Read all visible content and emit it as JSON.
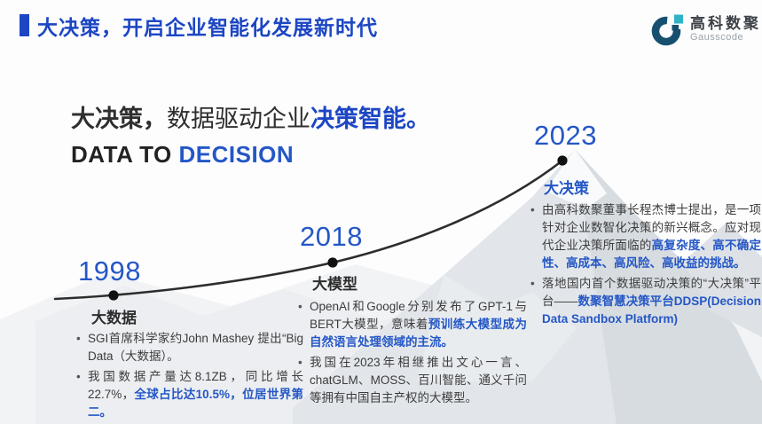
{
  "slide": {
    "header_title": "大决策，开启企业智能化发展新时代"
  },
  "logo": {
    "company_cn": "高科数聚",
    "company_en": "Gausscode"
  },
  "headline": {
    "cn_bold": "大决策，",
    "cn_regular": "数据驱动企业",
    "cn_accent": "决策智能。",
    "en_dark": "DATA TO",
    "en_accent": "DECISION"
  },
  "colors": {
    "accent": "#1c46c3",
    "year_blue": "#2457c6",
    "dark_text": "#2d2d2d",
    "body_text": "#3c3c3c",
    "curve": "#2d2d2d",
    "logo_navy": "#17506f",
    "logo_teal": "#2fb3c6"
  },
  "timeline": {
    "milestones": [
      {
        "year": "1998",
        "label": "大数据",
        "bullets": [
          [
            {
              "t": "SGI首席科学家约John Mashey 提出“Big Data（大数据）。",
              "em": false
            }
          ],
          [
            {
              "t": "我国数据产量达8.1ZB，同比增长22.7%，",
              "em": false
            },
            {
              "t": "全球占比达10.5%，位居世界第二。",
              "em": true
            }
          ]
        ]
      },
      {
        "year": "2018",
        "label": "大模型",
        "bullets": [
          [
            {
              "t": "OpenAI和Google分别发布了GPT-1与BERT大模型，意味着",
              "em": false
            },
            {
              "t": "预训练大模型成为自然语言处理领域的主流。",
              "em": true
            }
          ],
          [
            {
              "t": "我国在2023年相继推出文心一言、chatGLM、MOSS、百川智能、通义千问等拥有中国自主产权的大模型。",
              "em": false
            }
          ]
        ]
      },
      {
        "year": "2023",
        "label": "大决策",
        "bullets": [
          [
            {
              "t": "由高科数聚董事长程杰博士提出，是一项针对企业数智化决策的新兴概念。应对现代企业决策所面临的",
              "em": false
            },
            {
              "t": "高复杂度、高不确定性、高成本、高风险、高收益的挑战。",
              "em": true
            }
          ],
          [
            {
              "t": "落地国内首个数据驱动决策的“大决策”平台——",
              "em": false
            },
            {
              "t": "数聚智慧决策平台DDSP(Decision Data Sandbox Platform)",
              "em": true
            }
          ]
        ]
      }
    ]
  }
}
